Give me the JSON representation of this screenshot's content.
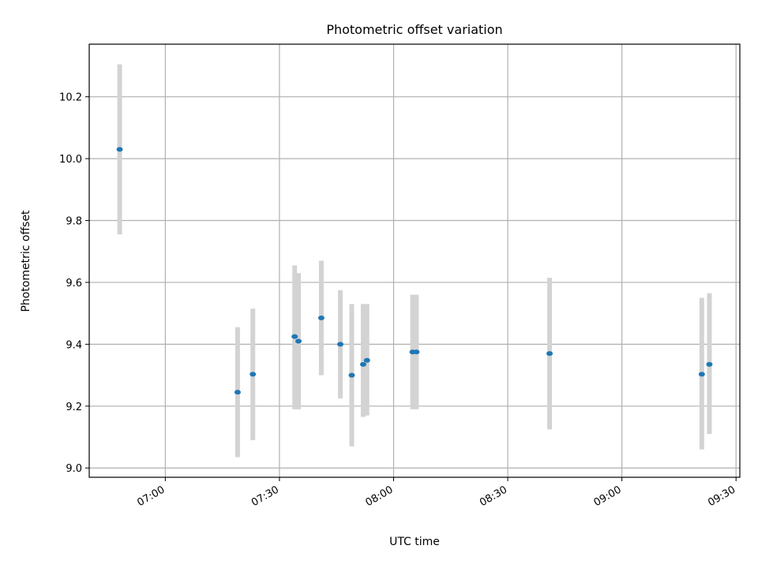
{
  "chart_data": {
    "type": "scatter",
    "title": "Photometric offset variation",
    "xlabel": "UTC time",
    "ylabel": "Photometric offset",
    "xlim": [
      "06:40",
      "09:31"
    ],
    "ylim": [
      8.97,
      10.37
    ],
    "x_ticks": [
      "07:00",
      "07:30",
      "08:00",
      "08:30",
      "09:00",
      "09:30"
    ],
    "y_ticks": [
      "9.0",
      "9.2",
      "9.4",
      "9.6",
      "9.8",
      "10.0",
      "10.2"
    ],
    "grid": true,
    "colors": {
      "marker": "#1f77b4",
      "errorbar": "#d3d3d3",
      "grid": "#b0b0b0"
    },
    "points": [
      {
        "x": "06:48",
        "y": 10.03,
        "err_low": 9.755,
        "err_high": 10.305
      },
      {
        "x": "07:19",
        "y": 9.245,
        "err_low": 9.035,
        "err_high": 9.455
      },
      {
        "x": "07:23",
        "y": 9.303,
        "err_low": 9.09,
        "err_high": 9.515
      },
      {
        "x": "07:34",
        "y": 9.425,
        "err_low": 9.19,
        "err_high": 9.655
      },
      {
        "x": "07:35",
        "y": 9.41,
        "err_low": 9.19,
        "err_high": 9.63
      },
      {
        "x": "07:41",
        "y": 9.485,
        "err_low": 9.3,
        "err_high": 9.67
      },
      {
        "x": "07:46",
        "y": 9.4,
        "err_low": 9.225,
        "err_high": 9.575
      },
      {
        "x": "07:49",
        "y": 9.3,
        "err_low": 9.07,
        "err_high": 9.53
      },
      {
        "x": "07:52",
        "y": 9.335,
        "err_low": 9.165,
        "err_high": 9.53
      },
      {
        "x": "07:53",
        "y": 9.348,
        "err_low": 9.17,
        "err_high": 9.53
      },
      {
        "x": "08:05",
        "y": 9.375,
        "err_low": 9.19,
        "err_high": 9.56
      },
      {
        "x": "08:06",
        "y": 9.375,
        "err_low": 9.19,
        "err_high": 9.56
      },
      {
        "x": "08:41",
        "y": 9.37,
        "err_low": 9.125,
        "err_high": 9.615
      },
      {
        "x": "09:21",
        "y": 9.303,
        "err_low": 9.06,
        "err_high": 9.55
      },
      {
        "x": "09:23",
        "y": 9.335,
        "err_low": 9.11,
        "err_high": 9.565
      }
    ]
  }
}
